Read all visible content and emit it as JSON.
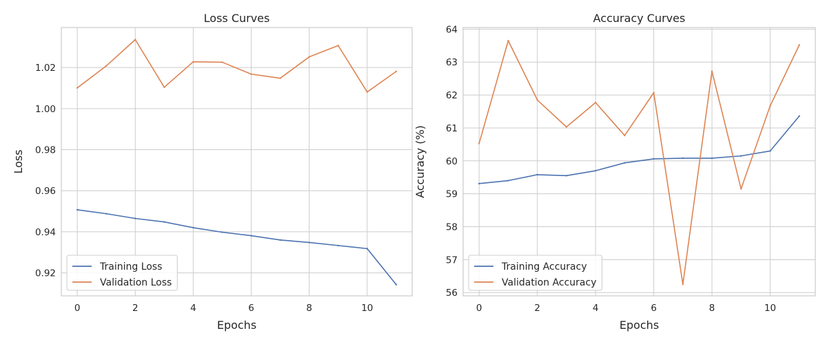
{
  "chart_data": [
    {
      "type": "line",
      "title": "Loss Curves",
      "xlabel": "Epochs",
      "ylabel": "Loss",
      "x": [
        0,
        1,
        2,
        3,
        4,
        5,
        6,
        7,
        8,
        9,
        10,
        11
      ],
      "xlim": [
        -0.55,
        11.55
      ],
      "ylim": [
        0.9088,
        1.0395
      ],
      "xticks": [
        0,
        2,
        4,
        6,
        8,
        10
      ],
      "yticks": [
        0.92,
        0.94,
        0.96,
        0.98,
        1.0,
        1.02
      ],
      "ytick_labels": [
        "0.92",
        "0.94",
        "0.96",
        "0.98",
        "1.00",
        "1.02"
      ],
      "grid": true,
      "legend_position": "lower-left",
      "series": [
        {
          "name": "Training Loss",
          "color": "#4c72b0",
          "values": [
            0.9507,
            0.9488,
            0.9465,
            0.9448,
            0.942,
            0.9398,
            0.9381,
            0.936,
            0.9348,
            0.9333,
            0.9318,
            0.9143
          ]
        },
        {
          "name": "Validation Loss",
          "color": "#dd8452",
          "values": [
            1.0101,
            1.0208,
            1.0336,
            1.0104,
            1.0228,
            1.0226,
            1.0168,
            1.0148,
            1.0252,
            1.0307,
            1.0081,
            1.0181
          ]
        }
      ]
    },
    {
      "type": "line",
      "title": "Accuracy Curves",
      "xlabel": "Epochs",
      "ylabel": "Accuracy (%)",
      "x": [
        0,
        1,
        2,
        3,
        4,
        5,
        6,
        7,
        8,
        9,
        10,
        11
      ],
      "xlim": [
        -0.55,
        11.55
      ],
      "ylim": [
        55.9,
        64.05
      ],
      "xticks": [
        0,
        2,
        4,
        6,
        8,
        10
      ],
      "yticks": [
        56,
        57,
        58,
        59,
        60,
        61,
        62,
        63,
        64
      ],
      "ytick_labels": [
        "56",
        "57",
        "58",
        "59",
        "60",
        "61",
        "62",
        "63",
        "64"
      ],
      "grid": true,
      "legend_position": "lower-left",
      "series": [
        {
          "name": "Training Accuracy",
          "color": "#4c72b0",
          "values": [
            59.31,
            59.4,
            59.58,
            59.55,
            59.7,
            59.94,
            60.06,
            60.08,
            60.08,
            60.15,
            60.3,
            61.36
          ]
        },
        {
          "name": "Validation Accuracy",
          "color": "#dd8452",
          "values": [
            60.53,
            63.65,
            61.85,
            61.03,
            61.77,
            60.77,
            62.07,
            56.25,
            62.72,
            59.15,
            61.67,
            63.52
          ]
        }
      ]
    }
  ]
}
